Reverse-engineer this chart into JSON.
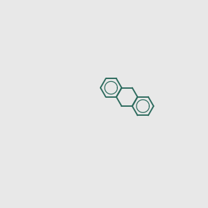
{
  "bg_color": "#e8e8e8",
  "bond_color": "#2d6b5e",
  "n_color": "#1414e6",
  "o_color": "#e60000",
  "s_color": "#cccc00",
  "line_width": 1.5,
  "font_size": 8
}
